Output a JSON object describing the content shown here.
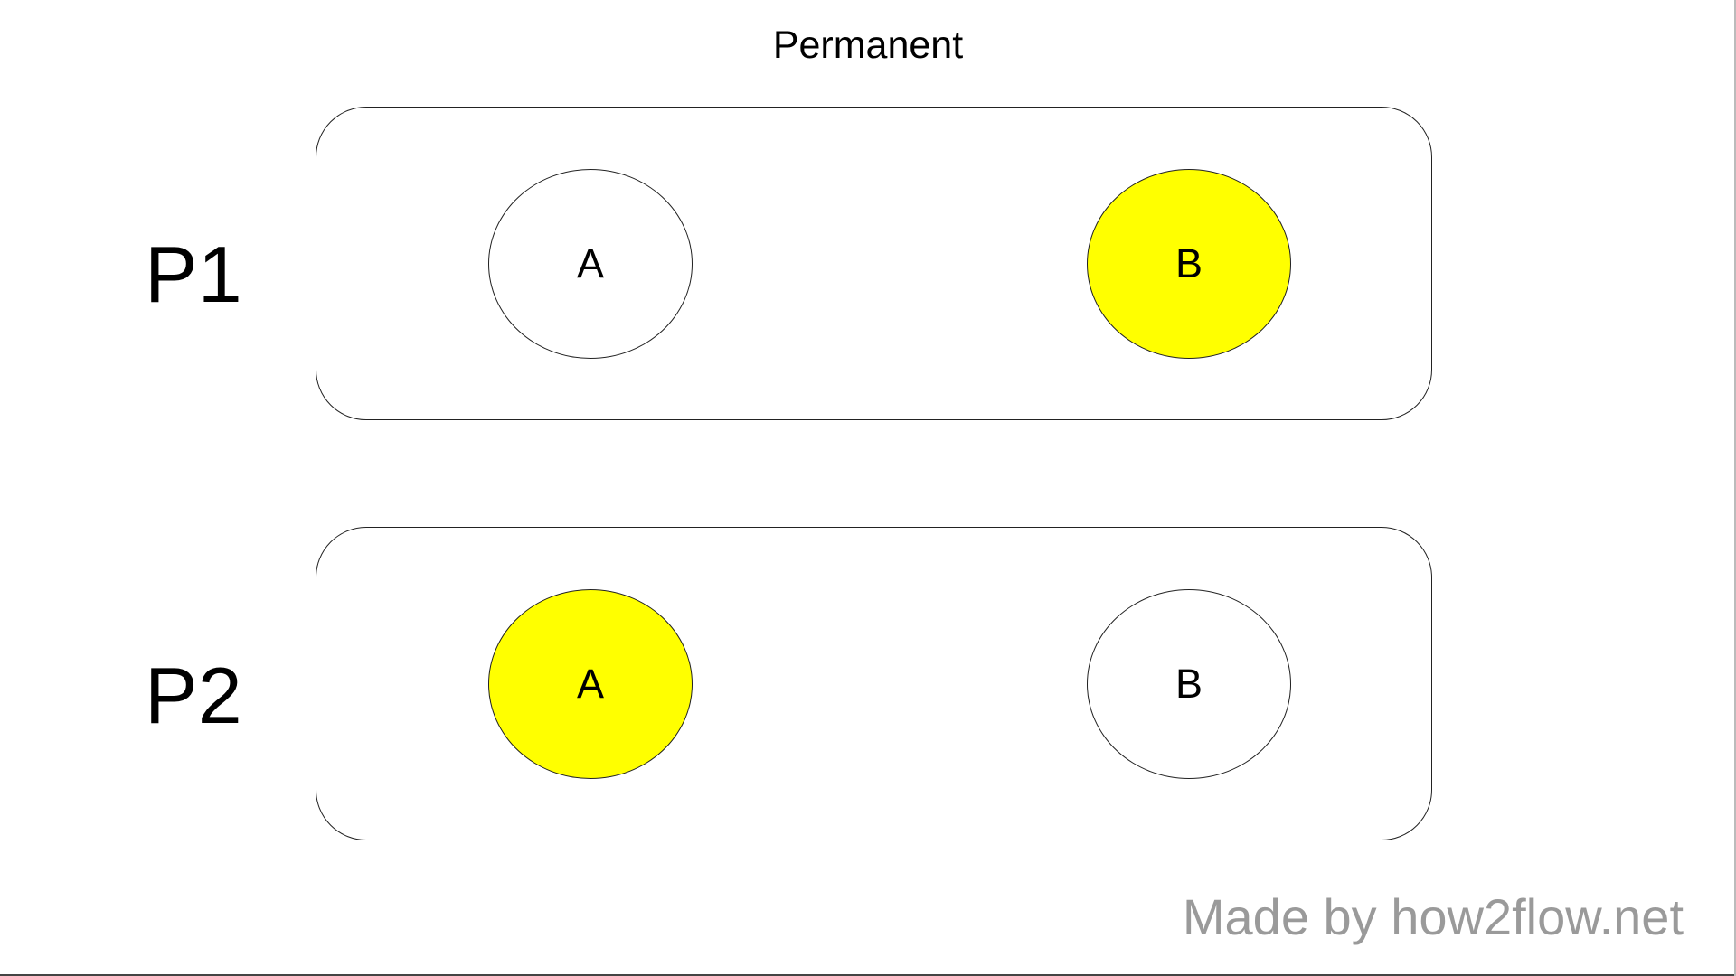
{
  "title": "Permanent",
  "rows": [
    {
      "label": "P1",
      "nodes": [
        {
          "text": "A",
          "fill": "#ffffff"
        },
        {
          "text": "B",
          "fill": "#ffff00"
        }
      ]
    },
    {
      "label": "P2",
      "nodes": [
        {
          "text": "A",
          "fill": "#ffff00"
        },
        {
          "text": "B",
          "fill": "#ffffff"
        }
      ]
    }
  ],
  "watermark": "Made by how2flow.net"
}
